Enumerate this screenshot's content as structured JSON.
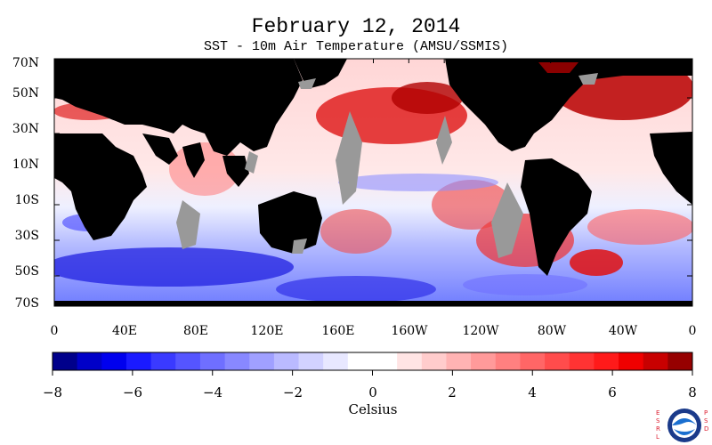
{
  "header": {
    "title": "February 12, 2014",
    "subtitle": "SST - 10m Air Temperature (AMSU/SSMIS)"
  },
  "map": {
    "type": "world anomaly map",
    "land_color": "#000000",
    "missing_data_color": "#999999",
    "lat_labels": [
      "70N",
      "50N",
      "30N",
      "10N",
      "10S",
      "30S",
      "50S",
      "70S"
    ],
    "lon_labels": [
      "0",
      "40E",
      "80E",
      "120E",
      "160E",
      "160W",
      "120W",
      "80W",
      "40W",
      "0"
    ],
    "warm_regions": [
      "North Pacific",
      "North Atlantic",
      "South Atlantic",
      "Southeast Pacific"
    ],
    "cool_regions": [
      "Southern Ocean (Indian sector)",
      "Southern Ocean (Pacific sector)",
      "Equatorial Pacific"
    ]
  },
  "colorbar": {
    "unit": "Celsius",
    "tick_labels": [
      "−8",
      "−6",
      "−4",
      "−2",
      "0",
      "2",
      "4",
      "6",
      "8"
    ],
    "colors": [
      "#00008b",
      "#0000c8",
      "#0000ee",
      "#1a1aff",
      "#3a3aff",
      "#5555ff",
      "#6f6fff",
      "#8888ff",
      "#a0a0ff",
      "#babaff",
      "#d2d2ff",
      "#e8e8ff",
      "#ffffff",
      "#ffffff",
      "#ffe4e4",
      "#ffcccc",
      "#ffb3b3",
      "#ff9a9a",
      "#ff8080",
      "#ff6666",
      "#ff4c4c",
      "#ff3333",
      "#ff1a1a",
      "#f00000",
      "#c80000",
      "#960000"
    ]
  },
  "logo": {
    "org": "NOAA",
    "side_left": "ESRL",
    "side_right": "PSD"
  }
}
